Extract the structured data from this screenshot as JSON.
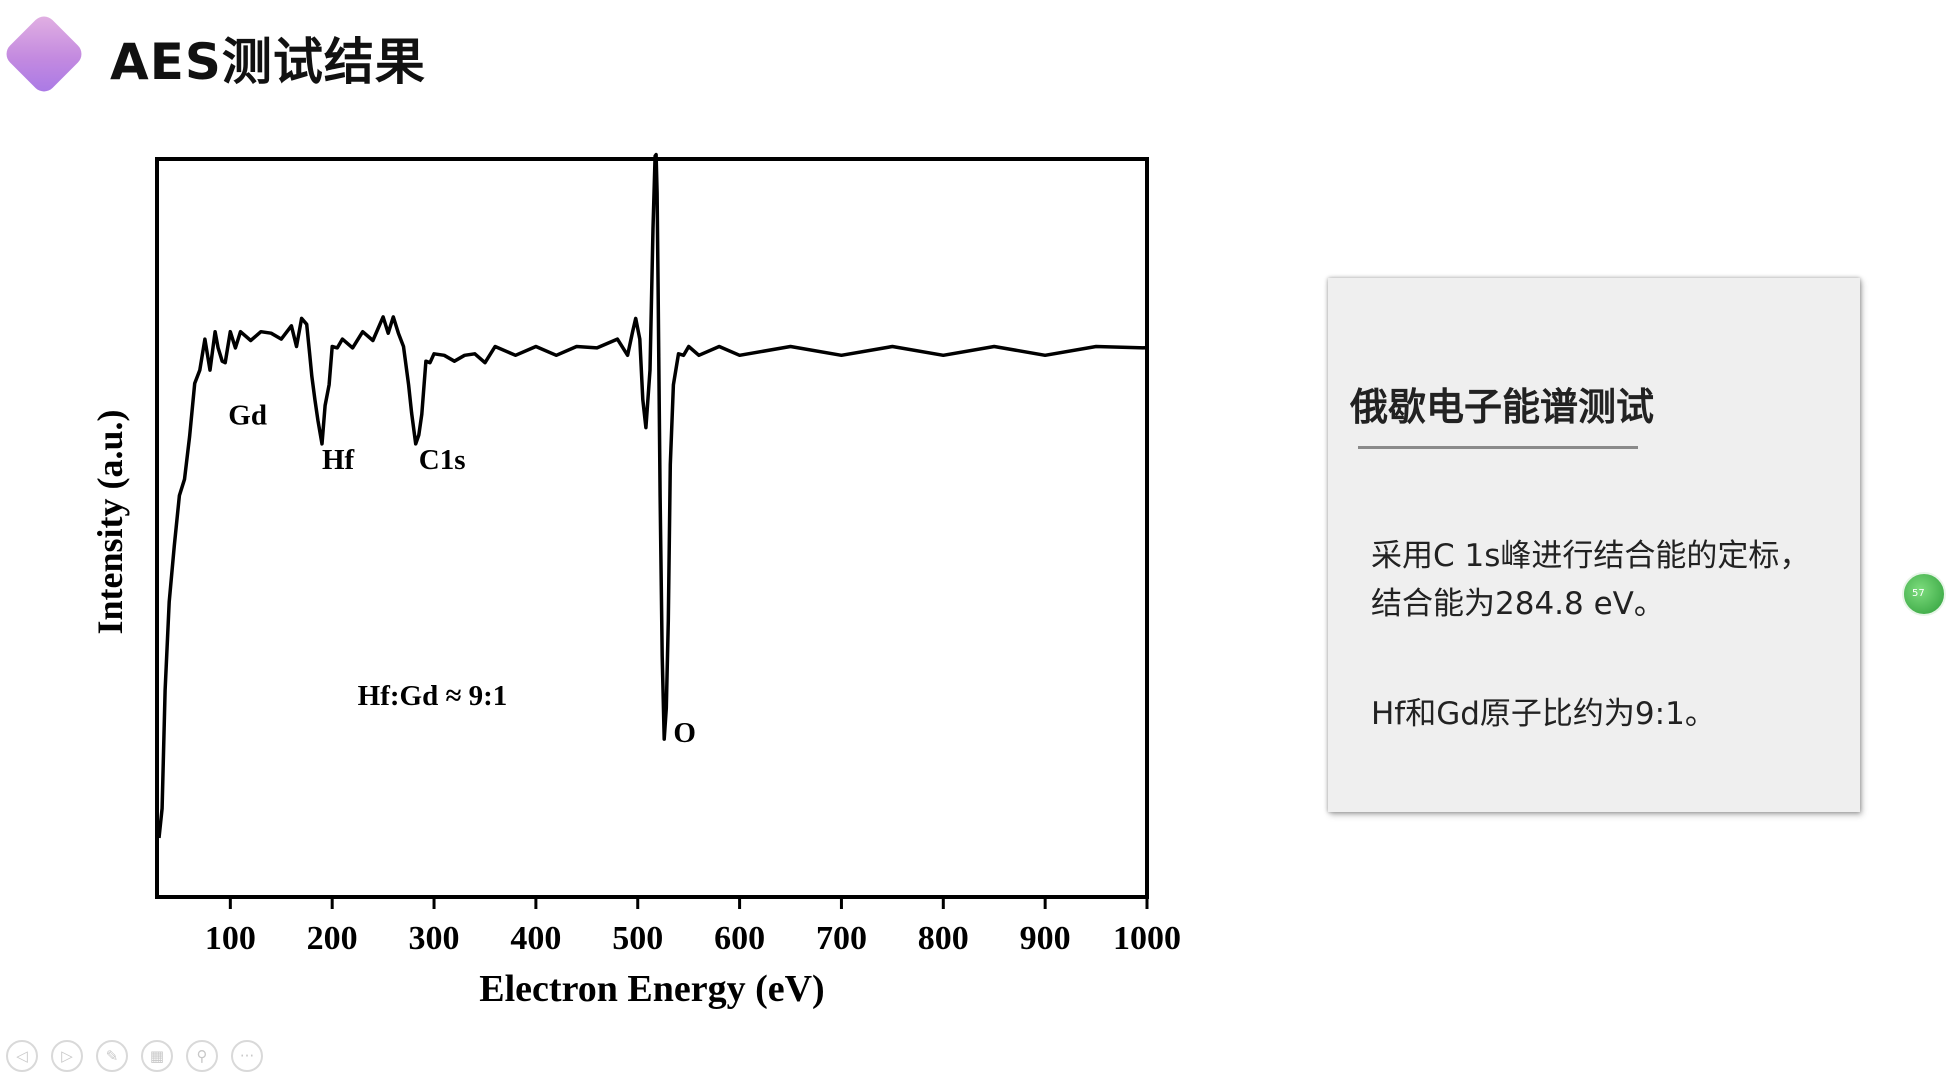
{
  "slide": {
    "title": "AES测试结果"
  },
  "card": {
    "heading": "俄歇电子能谱测试",
    "line1": "采用C 1s峰进行结合能的定标，",
    "line2": "结合能为284.8 eV。",
    "line3": "Hf和Gd原子比约为9:1。"
  },
  "badge": {
    "text": "57"
  },
  "toolbar": {
    "icons": [
      "prev-icon",
      "next-icon",
      "pen-icon",
      "slides-icon",
      "zoom-icon",
      "more-icon"
    ],
    "glyphs": [
      "◁",
      "▷",
      "✎",
      "▦",
      "⚲",
      "···"
    ]
  },
  "chart_data": {
    "type": "line",
    "xlabel": "Electron Energy (eV)",
    "ylabel": "Intensity (a.u.)",
    "xlim": [
      28,
      1000
    ],
    "ylim": [
      0,
      100
    ],
    "xticks": [
      100,
      200,
      300,
      400,
      500,
      600,
      700,
      800,
      900,
      1000
    ],
    "grid": false,
    "line_color": "#000000",
    "series": [
      {
        "x": [
          30,
          33,
          36,
          40,
          45,
          50,
          55,
          60,
          65,
          70,
          75,
          80,
          85,
          88,
          92,
          95,
          100,
          105,
          110,
          120,
          130,
          140,
          150,
          160,
          165,
          170,
          175,
          178,
          180,
          183,
          186,
          190,
          193,
          197,
          200,
          205,
          210,
          220,
          230,
          240,
          250,
          255,
          260,
          265,
          270,
          275,
          278,
          282,
          285,
          288,
          292,
          296,
          300,
          310,
          320,
          330,
          340,
          350,
          360,
          380,
          400,
          420,
          440,
          460,
          480,
          490,
          495,
          498,
          502,
          505,
          508,
          512,
          515,
          517,
          518,
          519,
          520,
          522,
          524,
          526,
          528,
          530,
          532,
          535,
          540,
          545,
          550,
          560,
          580,
          600,
          650,
          700,
          750,
          800,
          850,
          900,
          950,
          1000
        ],
        "y": [
          8,
          12,
          28,
          40,
          47,
          55,
          56,
          63,
          69,
          72,
          75,
          72,
          76,
          75,
          72,
          73,
          76,
          75,
          76,
          76,
          76,
          77,
          75,
          78,
          74,
          79,
          77,
          74,
          70,
          68,
          64,
          62,
          66,
          70,
          74,
          75,
          75,
          75,
          76,
          76,
          78,
          77,
          78,
          77,
          74,
          70,
          65,
          62,
          62,
          66,
          72,
          73,
          73,
          74,
          72,
          74,
          73,
          73,
          74,
          74,
          74,
          74,
          74,
          75,
          75,
          74,
          76,
          79,
          75,
          68,
          63,
          72,
          90,
          101,
          100,
          96,
          82,
          55,
          32,
          22,
          25,
          38,
          58,
          70,
          73,
          74,
          74,
          74,
          74,
          74,
          74,
          74,
          74,
          74,
          74,
          74,
          74,
          75
        ]
      }
    ],
    "annotations": [
      {
        "text": "Gd",
        "x": 98,
        "y": 64
      },
      {
        "text": "Hf",
        "x": 190,
        "y": 58
      },
      {
        "text": "C1s",
        "x": 285,
        "y": 58
      },
      {
        "text": "O",
        "x": 535,
        "y": 21
      },
      {
        "text": "Hf:Gd ≈ 9:1",
        "x": 225,
        "y": 26
      }
    ]
  }
}
